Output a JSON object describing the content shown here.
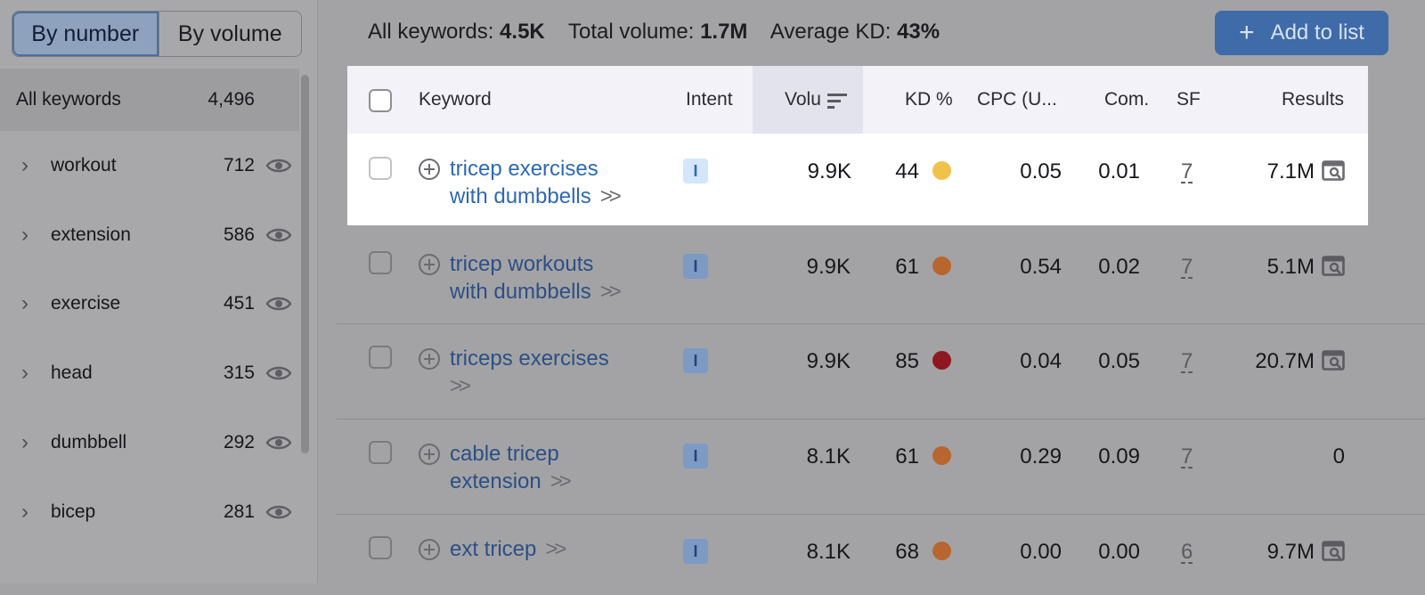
{
  "sidebar": {
    "toggle": {
      "by_number": "By number",
      "by_volume": "By volume"
    },
    "all_keywords": {
      "label": "All keywords",
      "count": "4,496"
    },
    "groups": [
      {
        "label": "workout",
        "count": "712"
      },
      {
        "label": "extension",
        "count": "586"
      },
      {
        "label": "exercise",
        "count": "451"
      },
      {
        "label": "head",
        "count": "315"
      },
      {
        "label": "dumbbell",
        "count": "292"
      },
      {
        "label": "bicep",
        "count": "281"
      }
    ]
  },
  "summary": {
    "all_label": "All keywords:",
    "all_value": "4.5K",
    "volume_label": "Total volume:",
    "volume_value": "1.7M",
    "kd_label": "Average KD:",
    "kd_value": "43%"
  },
  "add_button": {
    "label": "Add to list",
    "icon": "plus-icon"
  },
  "table": {
    "headers": {
      "keyword": "Keyword",
      "intent": "Intent",
      "volume": "Volu",
      "kd": "KD %",
      "cpc": "CPC (U...",
      "com": "Com.",
      "sf": "SF",
      "results": "Results"
    },
    "rows": [
      {
        "kw1": "tricep exercises",
        "kw2": "with dumbbells",
        "intent": "I",
        "volume": "9.9K",
        "kd": "44",
        "kd_color": "#f1c24a",
        "cpc": "0.05",
        "com": "0.01",
        "sf": "7",
        "results": "7.1M"
      },
      {
        "kw1": "tricep workouts",
        "kw2": "with dumbbells",
        "intent": "I",
        "volume": "9.9K",
        "kd": "61",
        "kd_color": "#b8652f",
        "cpc": "0.54",
        "com": "0.02",
        "sf": "7",
        "results": "5.1M"
      },
      {
        "kw1": "triceps exercises",
        "kw2": "",
        "intent": "I",
        "volume": "9.9K",
        "kd": "85",
        "kd_color": "#8e1722",
        "cpc": "0.04",
        "com": "0.05",
        "sf": "7",
        "results": "20.7M"
      },
      {
        "kw1": "cable tricep",
        "kw2": "extension",
        "intent": "I",
        "volume": "8.1K",
        "kd": "61",
        "kd_color": "#b8652f",
        "cpc": "0.29",
        "com": "0.09",
        "sf": "7",
        "results": "0"
      },
      {
        "kw1": "ext tricep",
        "kw2": "",
        "intent": "I",
        "volume": "8.1K",
        "kd": "68",
        "kd_color": "#b8652f",
        "cpc": "0.00",
        "com": "0.00",
        "sf": "6",
        "results": "9.7M"
      }
    ]
  }
}
